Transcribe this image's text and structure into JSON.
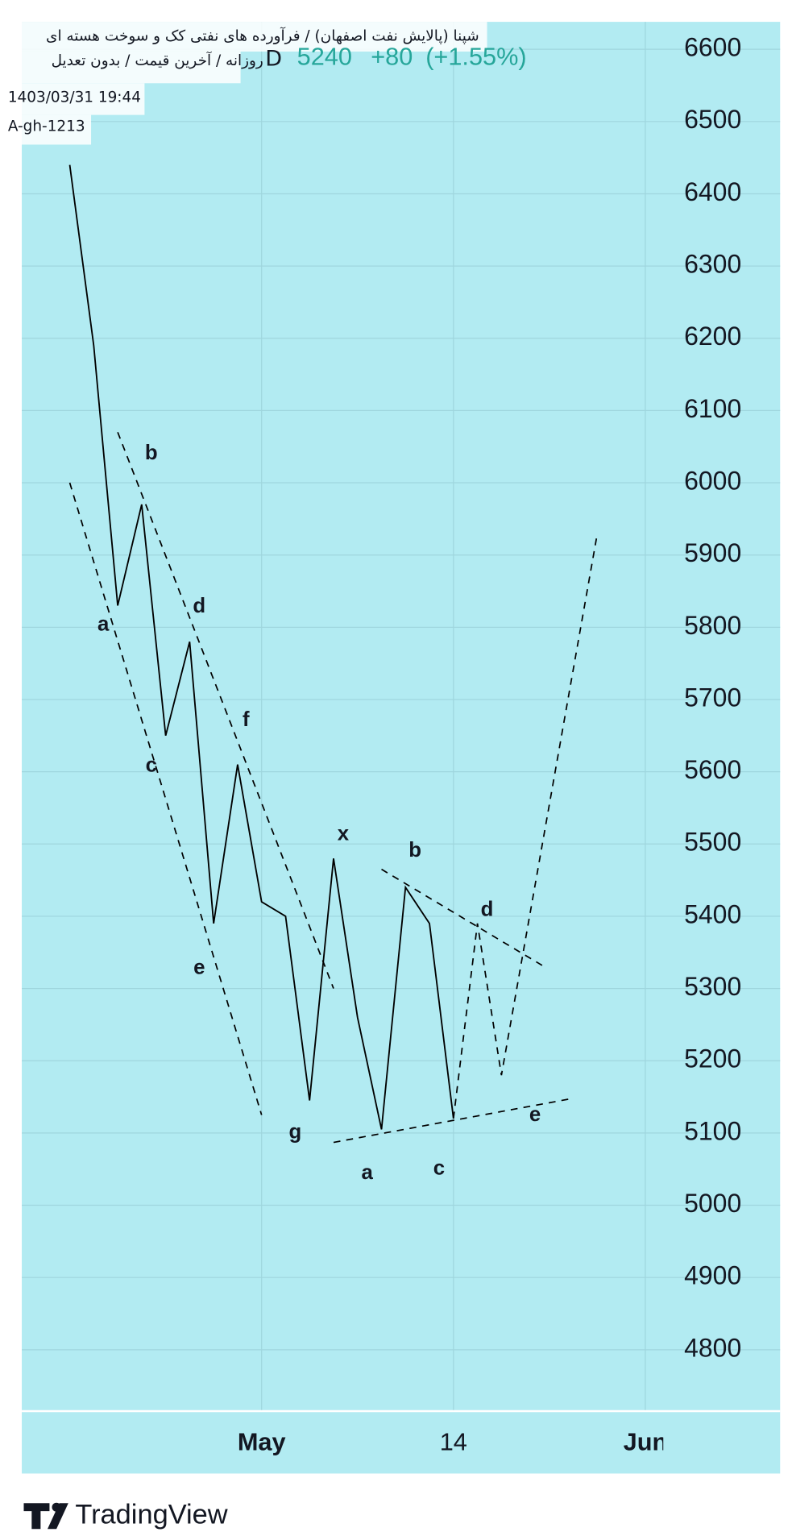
{
  "chart_data": {
    "type": "line",
    "title": "شپنا (پالایش نفت اصفهان) / فرآورده های نفتی کک و سوخت هسته ای",
    "subtitle": "روزانه / آخرین قیمت / بدون تعدیل",
    "interval": "D",
    "last_price": 5240,
    "change": "+80",
    "change_percent": "(+1.55%)",
    "date": "1403/03/31 19:44",
    "author": "A-gh-1213",
    "xlim": [
      -2,
      24.75
    ],
    "xticks": [
      {
        "value": 8,
        "label": "May"
      },
      {
        "value": 16,
        "label": "14"
      },
      {
        "value": 24,
        "label": "Jun"
      }
    ],
    "ylim": [
      4715,
      6638
    ],
    "yticks": [
      4800,
      4900,
      5000,
      5100,
      5200,
      5300,
      5400,
      5500,
      5600,
      5700,
      5800,
      5900,
      6000,
      6100,
      6200,
      6300,
      6400,
      6500,
      6600
    ],
    "grid": true,
    "background": "#b2ebf2",
    "price_color": "#26a69a",
    "series": [
      {
        "color": "#000000",
        "dashed": false,
        "x": [
          0,
          1,
          2,
          3,
          4,
          5,
          6,
          7,
          8,
          9,
          10,
          11,
          12,
          13,
          14,
          15,
          16
        ],
        "values": [
          6440,
          6190,
          5830,
          5970,
          5650,
          5780,
          5390,
          5610,
          5420,
          5400,
          5145,
          5480,
          5260,
          5105,
          5440,
          5390,
          5120
        ]
      },
      {
        "color": "#000000",
        "dashed": true,
        "x": [
          16,
          17,
          18,
          22
        ],
        "values": [
          5120,
          5390,
          5180,
          5930
        ]
      },
      {
        "color": "#000000",
        "dashed": true,
        "x": [
          0,
          8
        ],
        "values": [
          6000,
          5125
        ]
      },
      {
        "color": "#000000",
        "dashed": true,
        "x": [
          2,
          11
        ],
        "values": [
          6070,
          5300
        ]
      },
      {
        "color": "#000000",
        "dashed": true,
        "x": [
          11,
          21
        ],
        "values": [
          5087,
          5148
        ]
      },
      {
        "color": "#000000",
        "dashed": true,
        "x": [
          13,
          19.75
        ],
        "values": [
          5465,
          5331
        ]
      }
    ],
    "annotations": [
      {
        "text": "b",
        "x": 3.4,
        "y": 6040
      },
      {
        "text": "a",
        "x": 1.4,
        "y": 5803
      },
      {
        "text": "d",
        "x": 5.4,
        "y": 5828
      },
      {
        "text": "c",
        "x": 3.4,
        "y": 5608
      },
      {
        "text": "f",
        "x": 7.35,
        "y": 5671
      },
      {
        "text": "e",
        "x": 5.4,
        "y": 5328
      },
      {
        "text": "x",
        "x": 11.4,
        "y": 5513
      },
      {
        "text": "b",
        "x": 14.4,
        "y": 5490
      },
      {
        "text": "d",
        "x": 17.4,
        "y": 5408
      },
      {
        "text": "g",
        "x": 9.4,
        "y": 5100
      },
      {
        "text": "a",
        "x": 12.4,
        "y": 5044
      },
      {
        "text": "c",
        "x": 15.4,
        "y": 5050
      },
      {
        "text": "e",
        "x": 19.4,
        "y": 5124
      }
    ]
  },
  "footer": {
    "brand": "TradingView"
  }
}
